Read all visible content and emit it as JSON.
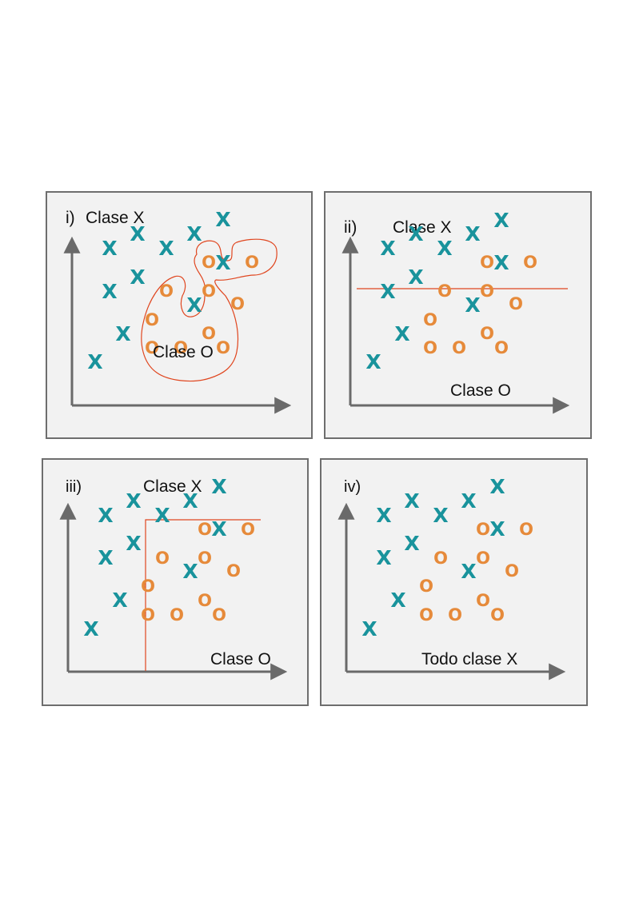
{
  "colors": {
    "x_marker": "#19939c",
    "o_marker": "#e68a3a",
    "boundary": "#e0461f",
    "axis": "#6a6a6a"
  },
  "panels": [
    {
      "roman": "i)",
      "labels": {
        "top": "Clase X",
        "bottom": "Clase O"
      },
      "points": [
        {
          "c": "X",
          "x": 27,
          "y": 1
        },
        {
          "c": "X",
          "x": 18,
          "y": 19
        },
        {
          "c": "X",
          "x": 29,
          "y": 13
        },
        {
          "c": "X",
          "x": 37,
          "y": 14
        },
        {
          "c": "X",
          "x": 49,
          "y": 24
        },
        {
          "c": "X",
          "x": 63,
          "y": 31
        },
        {
          "c": "X",
          "x": 78,
          "y": 51
        },
        {
          "c": "X",
          "x": 20,
          "y": 46
        },
        {
          "c": "X",
          "x": 35,
          "y": 61
        },
        {
          "c": "X",
          "x": 63,
          "y": 69
        },
        {
          "c": "X",
          "x": 92,
          "y": 70
        },
        {
          "c": "X",
          "x": 106,
          "y": 56
        },
        {
          "c": "O",
          "x": 87,
          "y": 38
        },
        {
          "c": "O",
          "x": 105,
          "y": 38
        },
        {
          "c": "O",
          "x": 124,
          "y": 31
        },
        {
          "c": "O",
          "x": 60,
          "y": 51
        },
        {
          "c": "O",
          "x": 102,
          "y": 51
        },
        {
          "c": "O",
          "x": 104,
          "y": 61
        },
        {
          "c": "O",
          "x": 124,
          "y": 57
        },
        {
          "c": "O",
          "x": 60,
          "y": 70
        },
        {
          "c": "O",
          "x": 71,
          "y": 70
        },
        {
          "c": "O",
          "x": 102,
          "y": 70
        },
        {
          "c": "O",
          "x": 110,
          "y": 70
        }
      ]
    },
    {
      "roman": "ii)",
      "labels": {
        "top": "Clase X",
        "bottom": "Clase O"
      },
      "points": [
        {
          "c": "X",
          "x": 18,
          "y": 19
        },
        {
          "c": "X",
          "x": 29,
          "y": 13
        },
        {
          "c": "X",
          "x": 37,
          "y": 14
        },
        {
          "c": "X",
          "x": 49,
          "y": 24
        },
        {
          "c": "X",
          "x": 63,
          "y": 31
        },
        {
          "c": "X",
          "x": 78,
          "y": 51
        },
        {
          "c": "X",
          "x": 20,
          "y": 46
        },
        {
          "c": "X",
          "x": 35,
          "y": 61
        },
        {
          "c": "X",
          "x": 63,
          "y": 69
        },
        {
          "c": "X",
          "x": 92,
          "y": 70
        },
        {
          "c": "X",
          "x": 106,
          "y": 56
        },
        {
          "c": "O",
          "x": 87,
          "y": 38
        },
        {
          "c": "O",
          "x": 105,
          "y": 38
        },
        {
          "c": "O",
          "x": 124,
          "y": 31
        },
        {
          "c": "O",
          "x": 60,
          "y": 51
        },
        {
          "c": "O",
          "x": 102,
          "y": 51
        },
        {
          "c": "O",
          "x": 104,
          "y": 61
        },
        {
          "c": "O",
          "x": 124,
          "y": 57
        },
        {
          "c": "O",
          "x": 60,
          "y": 70
        },
        {
          "c": "O",
          "x": 71,
          "y": 70
        },
        {
          "c": "O",
          "x": 102,
          "y": 70
        },
        {
          "c": "O",
          "x": 110,
          "y": 70
        }
      ]
    },
    {
      "roman": "iii)",
      "labels": {
        "top": "Clase X",
        "bottom": "Clase O"
      },
      "points": []
    },
    {
      "roman": "iv)",
      "labels": {
        "top": "",
        "bottom": "Todo clase X"
      },
      "points": []
    }
  ]
}
